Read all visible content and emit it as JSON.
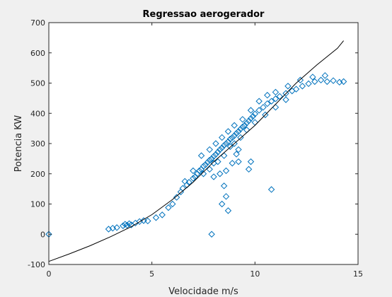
{
  "chart_data": {
    "type": "scatter",
    "title": "Regressao aerogerador",
    "xlabel": "Velocidade m/s",
    "ylabel": "Potencia KW",
    "xlim": [
      0,
      15
    ],
    "ylim": [
      -100,
      700
    ],
    "xticks": [
      0,
      5,
      10,
      15
    ],
    "yticks": [
      -100,
      0,
      100,
      200,
      300,
      400,
      500,
      600,
      700
    ],
    "x_tick_labels": [
      "0",
      "5",
      "10",
      "15"
    ],
    "y_tick_labels": [
      "-100",
      "0",
      "100",
      "200",
      "300",
      "400",
      "500",
      "600",
      "700"
    ],
    "grid": false,
    "series": [
      {
        "kind": "scatter",
        "marker": "diamond-open",
        "color": "#0072BD",
        "points": [
          [
            0.0,
            0
          ],
          [
            2.9,
            17
          ],
          [
            3.1,
            20
          ],
          [
            3.3,
            22
          ],
          [
            3.6,
            28
          ],
          [
            3.7,
            33
          ],
          [
            3.8,
            30
          ],
          [
            3.9,
            35
          ],
          [
            4.0,
            31
          ],
          [
            4.2,
            37
          ],
          [
            4.4,
            42
          ],
          [
            4.6,
            45
          ],
          [
            4.8,
            44
          ],
          [
            5.2,
            55
          ],
          [
            5.5,
            64
          ],
          [
            5.8,
            88
          ],
          [
            6.0,
            100
          ],
          [
            6.2,
            122
          ],
          [
            6.4,
            140
          ],
          [
            6.5,
            152
          ],
          [
            6.7,
            163
          ],
          [
            6.8,
            172
          ],
          [
            7.0,
            185
          ],
          [
            7.1,
            190
          ],
          [
            7.2,
            200
          ],
          [
            7.3,
            210
          ],
          [
            7.4,
            215
          ],
          [
            7.5,
            225
          ],
          [
            7.6,
            230
          ],
          [
            7.7,
            238
          ],
          [
            7.8,
            245
          ],
          [
            7.9,
            250
          ],
          [
            8.0,
            258
          ],
          [
            8.1,
            264
          ],
          [
            8.2,
            272
          ],
          [
            8.3,
            280
          ],
          [
            8.4,
            286
          ],
          [
            8.5,
            294
          ],
          [
            8.6,
            300
          ],
          [
            8.7,
            306
          ],
          [
            8.8,
            315
          ],
          [
            8.9,
            320
          ],
          [
            9.0,
            326
          ],
          [
            9.1,
            334
          ],
          [
            9.2,
            340
          ],
          [
            9.3,
            348
          ],
          [
            9.4,
            355
          ],
          [
            9.5,
            360
          ],
          [
            9.6,
            368
          ],
          [
            9.7,
            375
          ],
          [
            9.8,
            383
          ],
          [
            9.9,
            390
          ],
          [
            10.0,
            398
          ],
          [
            10.2,
            410
          ],
          [
            10.4,
            420
          ],
          [
            10.6,
            432
          ],
          [
            10.8,
            440
          ],
          [
            11.0,
            448
          ],
          [
            11.2,
            456
          ],
          [
            11.5,
            466
          ],
          [
            11.8,
            474
          ],
          [
            12.0,
            480
          ],
          [
            12.3,
            490
          ],
          [
            12.6,
            498
          ],
          [
            12.9,
            505
          ],
          [
            13.2,
            510
          ],
          [
            13.5,
            505
          ],
          [
            13.8,
            508
          ],
          [
            14.1,
            503
          ],
          [
            14.3,
            505
          ],
          [
            6.6,
            175
          ],
          [
            7.0,
            210
          ],
          [
            7.5,
            200
          ],
          [
            7.8,
            215
          ],
          [
            8.0,
            235
          ],
          [
            8.2,
            240
          ],
          [
            8.5,
            260
          ],
          [
            8.8,
            290
          ],
          [
            9.0,
            300
          ],
          [
            9.3,
            320
          ],
          [
            9.6,
            345
          ],
          [
            10.0,
            370
          ],
          [
            10.5,
            395
          ],
          [
            11.0,
            420
          ],
          [
            11.5,
            445
          ],
          [
            7.4,
            260
          ],
          [
            7.8,
            280
          ],
          [
            8.1,
            300
          ],
          [
            8.4,
            320
          ],
          [
            8.7,
            340
          ],
          [
            9.0,
            360
          ],
          [
            9.4,
            380
          ],
          [
            9.8,
            410
          ],
          [
            10.2,
            440
          ],
          [
            10.6,
            460
          ],
          [
            11.0,
            470
          ],
          [
            11.6,
            490
          ],
          [
            12.2,
            510
          ],
          [
            12.8,
            520
          ],
          [
            13.4,
            525
          ],
          [
            8.0,
            190
          ],
          [
            8.3,
            200
          ],
          [
            8.6,
            210
          ],
          [
            9.1,
            265
          ],
          [
            9.2,
            280
          ],
          [
            9.8,
            240
          ],
          [
            9.2,
            240
          ],
          [
            8.9,
            235
          ],
          [
            9.7,
            215
          ],
          [
            8.5,
            160
          ],
          [
            8.6,
            125
          ],
          [
            8.4,
            100
          ],
          [
            8.7,
            78
          ],
          [
            10.8,
            148
          ],
          [
            7.9,
            0
          ]
        ]
      },
      {
        "kind": "line",
        "color": "#000000",
        "points": [
          [
            0.0,
            -90
          ],
          [
            1.0,
            -65
          ],
          [
            2.0,
            -38
          ],
          [
            3.0,
            -8
          ],
          [
            4.0,
            25
          ],
          [
            5.0,
            65
          ],
          [
            6.0,
            115
          ],
          [
            7.0,
            172
          ],
          [
            8.0,
            240
          ],
          [
            9.0,
            300
          ],
          [
            10.0,
            360
          ],
          [
            11.0,
            430
          ],
          [
            12.0,
            500
          ],
          [
            13.0,
            560
          ],
          [
            14.0,
            615
          ],
          [
            14.3,
            640
          ]
        ]
      }
    ]
  }
}
